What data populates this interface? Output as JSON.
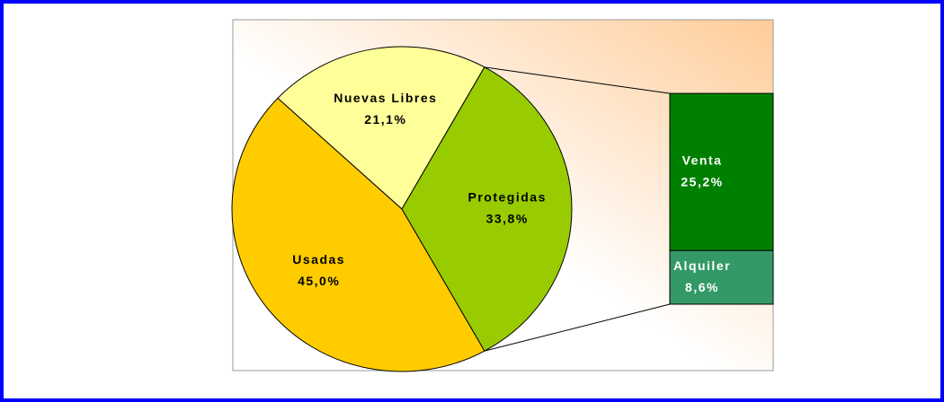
{
  "chart_data": {
    "type": "pie_of_bar",
    "pie": {
      "categories": [
        "Nuevas Libres",
        "Protegidas",
        "Usadas"
      ],
      "values": [
        21.1,
        33.8,
        45.0
      ],
      "value_labels": [
        "21,1%",
        "33,8%",
        "45,0%"
      ],
      "colors": [
        "#ffff99",
        "#99cc00",
        "#ffcc00"
      ]
    },
    "bar": {
      "categories": [
        "Venta",
        "Alquiler"
      ],
      "values": [
        25.2,
        8.6
      ],
      "value_labels": [
        "25,2%",
        "8,6%"
      ],
      "colors": [
        "#008000",
        "#339966"
      ]
    }
  }
}
